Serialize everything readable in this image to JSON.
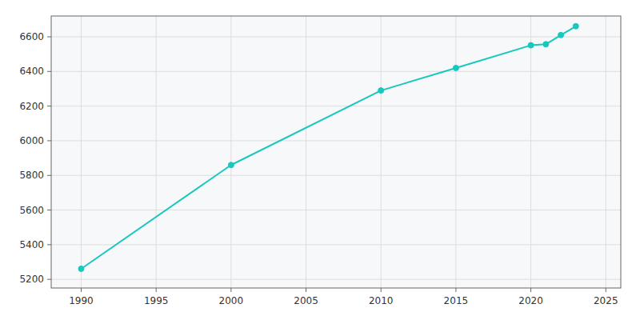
{
  "chart_data": {
    "type": "line",
    "x": [
      1990,
      2000,
      2010,
      2015,
      2020,
      2021,
      2022,
      2023
    ],
    "values": [
      5261,
      5860,
      6290,
      6420,
      6551,
      6557,
      6610,
      6661
    ],
    "color": "#17c8be",
    "marker": "circle",
    "xlim": [
      1988,
      2026
    ],
    "ylim": [
      5150,
      6720
    ],
    "xticks": [
      1990,
      1995,
      2000,
      2005,
      2010,
      2015,
      2020,
      2025
    ],
    "yticks": [
      5200,
      5400,
      5600,
      5800,
      6000,
      6200,
      6400,
      6600
    ],
    "grid": true
  }
}
